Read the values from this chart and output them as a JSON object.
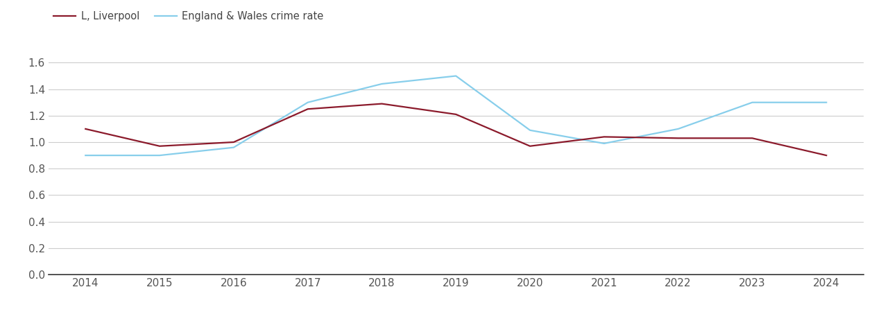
{
  "years": [
    2014,
    2015,
    2016,
    2017,
    2018,
    2019,
    2020,
    2021,
    2022,
    2023,
    2024
  ],
  "liverpool": [
    1.1,
    0.97,
    1.0,
    1.25,
    1.29,
    1.21,
    0.97,
    1.04,
    1.03,
    1.03,
    0.9
  ],
  "england_wales": [
    0.9,
    0.9,
    0.96,
    1.3,
    1.44,
    1.5,
    1.09,
    0.99,
    1.1,
    1.3,
    1.3
  ],
  "liverpool_color": "#8B1A2B",
  "england_wales_color": "#87CEEB",
  "liverpool_label": "L, Liverpool",
  "england_wales_label": "England & Wales crime rate",
  "ylim": [
    0.0,
    1.72
  ],
  "yticks": [
    0.0,
    0.2,
    0.4,
    0.6,
    0.8,
    1.0,
    1.2,
    1.4,
    1.6
  ],
  "background_color": "#ffffff",
  "grid_color": "#cccccc",
  "line_width": 1.6,
  "font_size": 11,
  "legend_font_size": 10.5,
  "tick_color": "#555555"
}
